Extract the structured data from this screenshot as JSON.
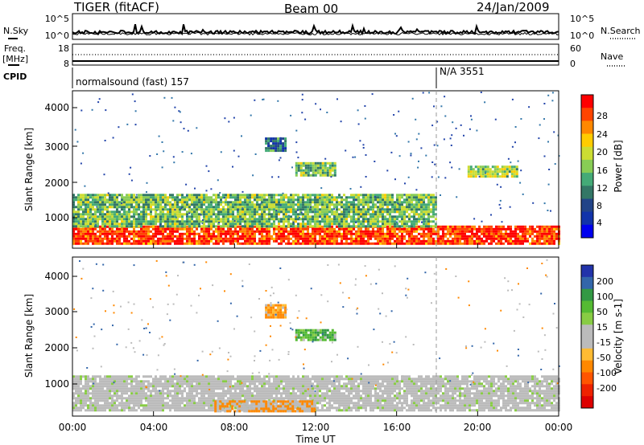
{
  "header": {
    "station": "TIGER (fitACF)",
    "beam": "Beam 00",
    "date": "24/Jan/2009"
  },
  "strip_labels": {
    "nsky": "N.Sky",
    "nsearch": "N.Search",
    "freq_line1": "Freq.",
    "freq_line2": "[MHz]",
    "nave": "Nave",
    "cpid": "CPID"
  },
  "strip_ticks": {
    "noise_left": [
      "10^5",
      "10^0"
    ],
    "noise_right": [
      "10^5",
      "10^0"
    ],
    "freq_left": [
      "18",
      "8"
    ],
    "freq_right": [
      "60",
      "0"
    ]
  },
  "cpid_segments": [
    {
      "text": "normalsound (fast) 157"
    },
    {
      "text": "N/A 3551"
    }
  ],
  "x_axis": {
    "label": "Time UT",
    "ticks": [
      "00:00",
      "04:00",
      "08:00",
      "12:00",
      "16:00",
      "20:00",
      "00:00"
    ]
  },
  "power_panel": {
    "ylabel": "Slant Range [km]",
    "yticks": [
      "4000",
      "3000",
      "2000",
      "1000"
    ],
    "colorbar_label": "Power [dB]",
    "colorbar_ticks": [
      "28",
      "24",
      "20",
      "16",
      "12",
      "8",
      "4"
    ],
    "colorbar_colors": [
      "#ff0000",
      "#ff4400",
      "#ff8800",
      "#ffcc00",
      "#ccdd33",
      "#88cc55",
      "#44aa77",
      "#337766",
      "#224488",
      "#1133aa",
      "#0000ee"
    ]
  },
  "velocity_panel": {
    "ylabel": "Slant Range [km]",
    "yticks": [
      "4000",
      "3000",
      "2000",
      "1000"
    ],
    "colorbar_label": "Velocity [m s-1]",
    "colorbar_ticks": [
      "200",
      "100",
      "50",
      "15",
      "-15",
      "-50",
      "-100",
      "-200"
    ],
    "colorbar_colors": [
      "#2233aa",
      "#3366aa",
      "#339944",
      "#55bb33",
      "#88cc44",
      "#bbbbbb",
      "#bbbbbb",
      "#ffbb33",
      "#ff8800",
      "#ff5500",
      "#ee2200",
      "#dd0000"
    ]
  },
  "chart_data": [
    {
      "type": "heatmap",
      "title": "Power",
      "xlabel": "Time UT",
      "ylabel": "Slant Range [km]",
      "xlim": [
        "00:00",
        "24:00"
      ],
      "ylim": [
        180,
        4600
      ],
      "colorbar": {
        "label": "Power [dB]",
        "range": [
          0,
          30
        ],
        "ticks": [
          4,
          8,
          12,
          16,
          20,
          24,
          28
        ]
      },
      "features": [
        {
          "time": [
            "00:00",
            "24:00"
          ],
          "range_km": [
            300,
            800
          ],
          "power_db": 28
        },
        {
          "time": [
            "00:00",
            "18:00"
          ],
          "range_km": [
            800,
            1700
          ],
          "power_db": 14
        },
        {
          "time": [
            "09:30",
            "10:30"
          ],
          "range_km": [
            2900,
            3300
          ],
          "power_db": 8
        },
        {
          "time": [
            "11:00",
            "13:00"
          ],
          "range_km": [
            2200,
            2600
          ],
          "power_db": 14
        },
        {
          "time": [
            "19:30",
            "22:00"
          ],
          "range_km": [
            2200,
            2500
          ],
          "power_db": 16
        }
      ]
    },
    {
      "type": "heatmap",
      "title": "Velocity",
      "xlabel": "Time UT",
      "ylabel": "Slant Range [km]",
      "xlim": [
        "00:00",
        "24:00"
      ],
      "ylim": [
        180,
        4600
      ],
      "colorbar": {
        "label": "Velocity [m s-1]",
        "range": [
          -250,
          250
        ],
        "ticks": [
          200,
          100,
          50,
          15,
          -15,
          -50,
          -100,
          -200
        ]
      },
      "features": [
        {
          "time": [
            "00:00",
            "24:00"
          ],
          "range_km": [
            300,
            1300
          ],
          "velocity_ms": 0
        },
        {
          "time": [
            "09:30",
            "10:30"
          ],
          "range_km": [
            2900,
            3300
          ],
          "velocity_ms": -60
        },
        {
          "time": [
            "11:00",
            "13:00"
          ],
          "range_km": [
            2300,
            2600
          ],
          "velocity_ms": 60
        },
        {
          "time": [
            "07:00",
            "12:00"
          ],
          "range_km": [
            300,
            600
          ],
          "velocity_ms": -40
        }
      ]
    }
  ]
}
